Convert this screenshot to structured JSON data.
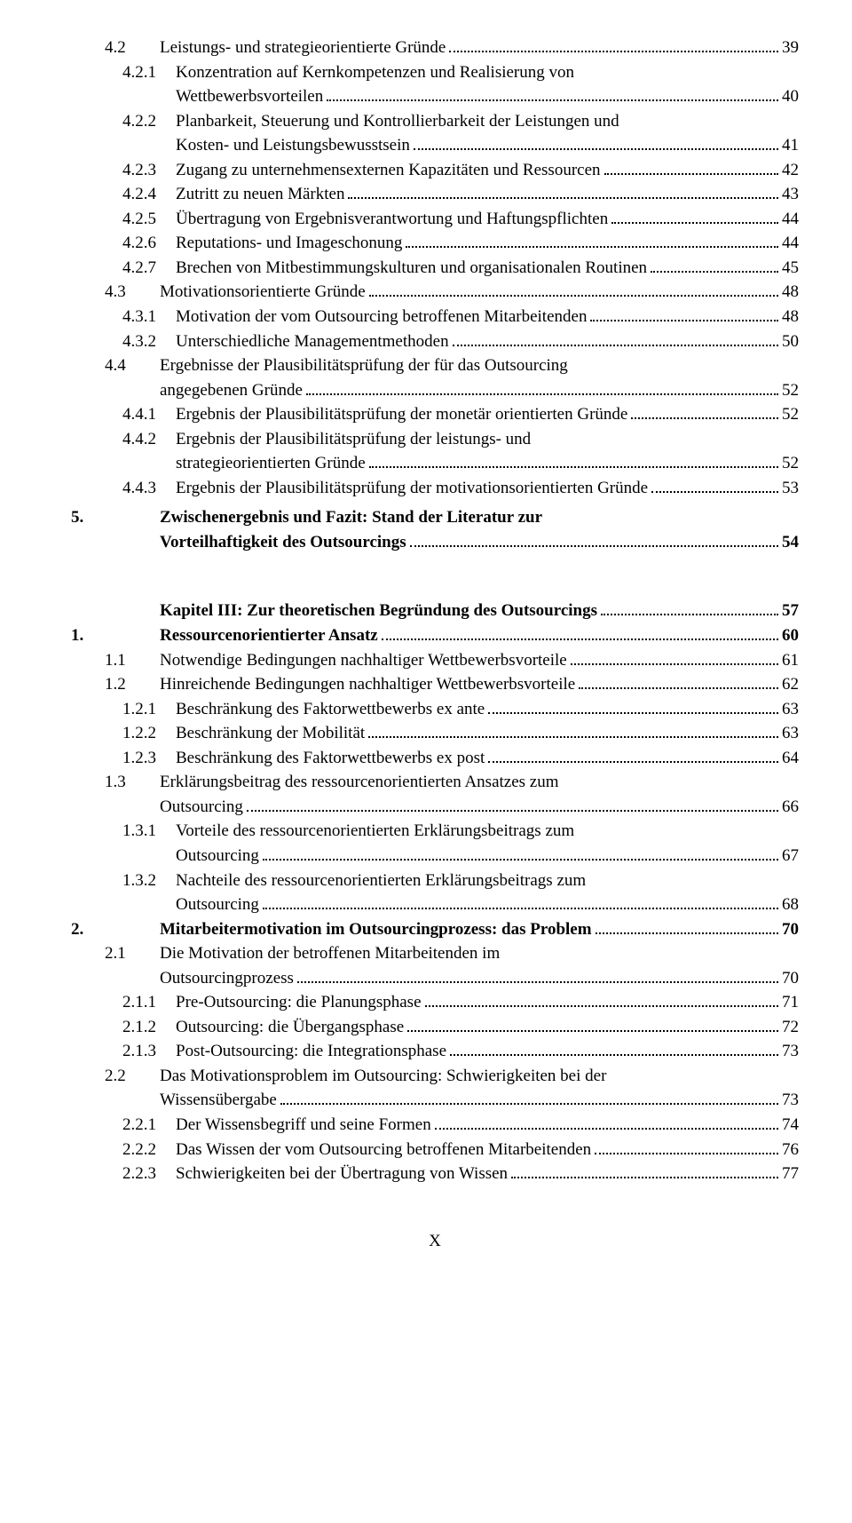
{
  "entries": [
    {
      "lvl": "b",
      "num": "4.2",
      "label": "Leistungs- und strategieorientierte Gründe",
      "page": "39",
      "bold": false
    },
    {
      "lvl": "c",
      "num": "4.2.1",
      "label": "Konzentration auf Kernkompetenzen und Realisierung von",
      "cont": "Wettbewerbsvorteilen",
      "page": "40",
      "bold": false
    },
    {
      "lvl": "c",
      "num": "4.2.2",
      "label": "Planbarkeit, Steuerung und Kontrollierbarkeit der Leistungen und",
      "cont": "Kosten- und Leistungsbewusstsein",
      "page": "41",
      "bold": false
    },
    {
      "lvl": "c",
      "num": "4.2.3",
      "label": "Zugang zu unternehmensexternen Kapazitäten und Ressourcen",
      "page": "42",
      "bold": false
    },
    {
      "lvl": "c",
      "num": "4.2.4",
      "label": "Zutritt zu neuen Märkten",
      "page": "43",
      "bold": false
    },
    {
      "lvl": "c",
      "num": "4.2.5",
      "label": "Übertragung von Ergebnisverantwortung und Haftungspflichten",
      "page": "44",
      "bold": false
    },
    {
      "lvl": "c",
      "num": "4.2.6",
      "label": "Reputations- und Imageschonung",
      "page": "44",
      "bold": false
    },
    {
      "lvl": "c",
      "num": "4.2.7",
      "label": "Brechen von Mitbestimmungskulturen und organisationalen Routinen",
      "page": "45",
      "bold": false
    },
    {
      "lvl": "b",
      "num": "4.3",
      "label": "Motivationsorientierte Gründe",
      "page": "48",
      "bold": false
    },
    {
      "lvl": "c",
      "num": "4.3.1",
      "label": "Motivation der vom Outsourcing betroffenen Mitarbeitenden",
      "page": "48",
      "bold": false
    },
    {
      "lvl": "c",
      "num": "4.3.2",
      "label": "Unterschiedliche Managementmethoden",
      "page": "50",
      "bold": false
    },
    {
      "lvl": "b",
      "num": "4.4",
      "label": "Ergebnisse der Plausibilitätsprüfung der für das Outsourcing",
      "cont": "angegebenen Gründe",
      "page": "52",
      "bold": false
    },
    {
      "lvl": "c",
      "num": "4.4.1",
      "label": "Ergebnis der Plausibilitätsprüfung der monetär orientierten Gründe",
      "page": "52",
      "bold": false
    },
    {
      "lvl": "c",
      "num": "4.4.2",
      "label": "Ergebnis der Plausibilitätsprüfung der leistungs- und",
      "cont": "strategieorientierten Gründe",
      "page": "52",
      "bold": false
    },
    {
      "lvl": "c",
      "num": "4.4.3",
      "label": "Ergebnis der Plausibilitätsprüfung der motivationsorientierten Gründe",
      "page": "53",
      "bold": false
    },
    {
      "lvl": "a",
      "num": "5.",
      "label": "Zwischenergebnis und Fazit: Stand der Literatur zur",
      "cont": "Vorteilhaftigkeit des Outsourcings",
      "page": "54",
      "bold": true,
      "cls": "section5"
    },
    {
      "lvl": "a",
      "num": "",
      "label": "Kapitel III: Zur theoretischen Begründung des Outsourcings",
      "page": "57",
      "bold": true,
      "cls": "chapter-gap"
    },
    {
      "lvl": "a",
      "num": "1.",
      "label": "Ressourcenorientierter Ansatz",
      "page": "60",
      "bold": true
    },
    {
      "lvl": "b",
      "num": "1.1",
      "label": "Notwendige Bedingungen nachhaltiger Wettbewerbsvorteile",
      "page": "61",
      "bold": false
    },
    {
      "lvl": "b",
      "num": "1.2",
      "label": "Hinreichende Bedingungen nachhaltiger Wettbewerbsvorteile",
      "page": "62",
      "bold": false
    },
    {
      "lvl": "c",
      "num": "1.2.1",
      "label": "Beschränkung des Faktorwettbewerbs ex ante",
      "page": "63",
      "bold": false
    },
    {
      "lvl": "c",
      "num": "1.2.2",
      "label": "Beschränkung der Mobilität",
      "page": "63",
      "bold": false
    },
    {
      "lvl": "c",
      "num": "1.2.3",
      "label": "Beschränkung des Faktorwettbewerbs ex post",
      "page": "64",
      "bold": false
    },
    {
      "lvl": "b",
      "num": "1.3",
      "label": "Erklärungsbeitrag des ressourcenorientierten Ansatzes zum",
      "cont": "Outsourcing",
      "page": "66",
      "bold": false
    },
    {
      "lvl": "c",
      "num": "1.3.1",
      "label": "Vorteile des ressourcenorientierten Erklärungsbeitrags zum",
      "cont": "Outsourcing",
      "page": "67",
      "bold": false
    },
    {
      "lvl": "c",
      "num": "1.3.2",
      "label": "Nachteile des ressourcenorientierten Erklärungsbeitrags zum",
      "cont": "Outsourcing",
      "page": "68",
      "bold": false
    },
    {
      "lvl": "a",
      "num": "2.",
      "label": "Mitarbeitermotivation im Outsourcingprozess: das Problem",
      "page": "70",
      "bold": true
    },
    {
      "lvl": "b",
      "num": "2.1",
      "label": "Die Motivation der betroffenen Mitarbeitenden im",
      "cont": "Outsourcingprozess",
      "page": "70",
      "bold": false
    },
    {
      "lvl": "c",
      "num": "2.1.1",
      "label": "Pre-Outsourcing: die Planungsphase",
      "page": "71",
      "bold": false
    },
    {
      "lvl": "c",
      "num": "2.1.2",
      "label": "Outsourcing: die Übergangsphase",
      "page": "72",
      "bold": false
    },
    {
      "lvl": "c",
      "num": "2.1.3",
      "label": "Post-Outsourcing: die Integrationsphase",
      "page": "73",
      "bold": false
    },
    {
      "lvl": "b",
      "num": "2.2",
      "label": "Das Motivationsproblem im Outsourcing: Schwierigkeiten bei der",
      "cont": "Wissensübergabe",
      "page": "73",
      "bold": false
    },
    {
      "lvl": "c",
      "num": "2.2.1",
      "label": "Der Wissensbegriff und seine Formen",
      "page": "74",
      "bold": false
    },
    {
      "lvl": "c",
      "num": "2.2.2",
      "label": "Das Wissen der vom Outsourcing betroffenen Mitarbeitenden",
      "page": "76",
      "bold": false
    },
    {
      "lvl": "c",
      "num": "2.2.3",
      "label": "Schwierigkeiten bei der Übertragung von Wissen",
      "page": "77",
      "bold": false
    }
  ],
  "footer": "X",
  "colors": {
    "bg": "#ffffff",
    "text": "#000000"
  },
  "num_col_width": {
    "a": 100,
    "b": 62,
    "c": 60
  },
  "cont_indent": {
    "a": 100,
    "b": 100,
    "c": 118
  }
}
